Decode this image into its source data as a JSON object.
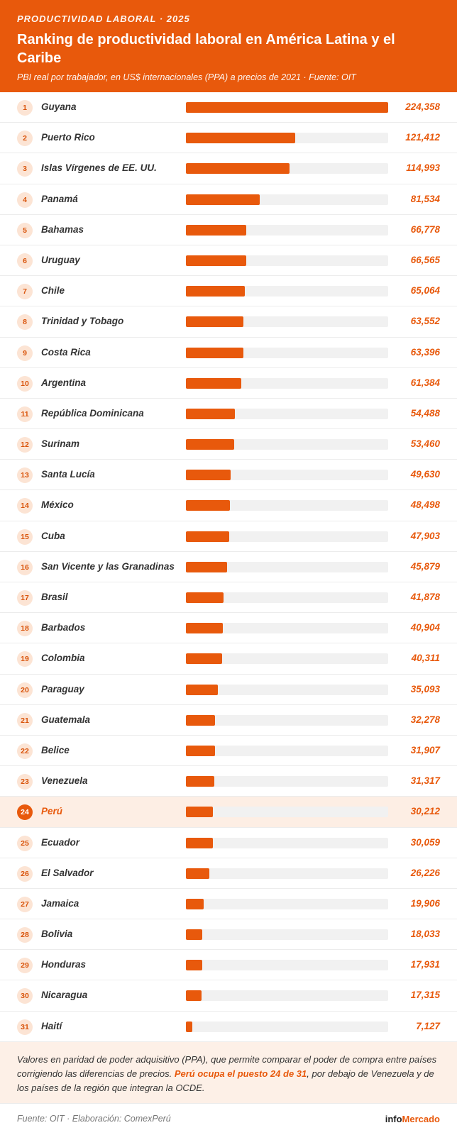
{
  "header": {
    "kicker": "PRODUCTIVIDAD LABORAL · 2025",
    "title": "Ranking de productividad laboral en América Latina y el Caribe",
    "subtitle": "PBI real por trabajador, en US$ internacionales (PPA) a precios de 2021 · Fuente: OIT"
  },
  "chart_data": {
    "type": "bar",
    "orientation": "horizontal",
    "highlight_rank": 24,
    "colors": {
      "accent": "#e8590c",
      "highlight_bg": "#fdeee4",
      "track": "#f1f1f1"
    },
    "xlim": [
      0,
      224358
    ],
    "rows": [
      {
        "rank": "1",
        "country": "Guyana",
        "value": 224358,
        "label": "224,358"
      },
      {
        "rank": "2",
        "country": "Puerto Rico",
        "value": 121412,
        "label": "121,412"
      },
      {
        "rank": "3",
        "country": "Islas Vírgenes de EE. UU.",
        "value": 114993,
        "label": "114,993"
      },
      {
        "rank": "4",
        "country": "Panamá",
        "value": 81534,
        "label": "81,534"
      },
      {
        "rank": "5",
        "country": "Bahamas",
        "value": 66778,
        "label": "66,778"
      },
      {
        "rank": "6",
        "country": "Uruguay",
        "value": 66565,
        "label": "66,565"
      },
      {
        "rank": "7",
        "country": "Chile",
        "value": 65064,
        "label": "65,064"
      },
      {
        "rank": "8",
        "country": "Trinidad y Tobago",
        "value": 63552,
        "label": "63,552"
      },
      {
        "rank": "9",
        "country": "Costa Rica",
        "value": 63396,
        "label": "63,396"
      },
      {
        "rank": "10",
        "country": "Argentina",
        "value": 61384,
        "label": "61,384"
      },
      {
        "rank": "11",
        "country": "República Dominicana",
        "value": 54488,
        "label": "54,488"
      },
      {
        "rank": "12",
        "country": "Surinam",
        "value": 53460,
        "label": "53,460"
      },
      {
        "rank": "13",
        "country": "Santa Lucía",
        "value": 49630,
        "label": "49,630"
      },
      {
        "rank": "14",
        "country": "México",
        "value": 48498,
        "label": "48,498"
      },
      {
        "rank": "15",
        "country": "Cuba",
        "value": 47903,
        "label": "47,903"
      },
      {
        "rank": "16",
        "country": "San Vicente y las Granadinas",
        "value": 45879,
        "label": "45,879"
      },
      {
        "rank": "17",
        "country": "Brasil",
        "value": 41878,
        "label": "41,878"
      },
      {
        "rank": "18",
        "country": "Barbados",
        "value": 40904,
        "label": "40,904"
      },
      {
        "rank": "19",
        "country": "Colombia",
        "value": 40311,
        "label": "40,311"
      },
      {
        "rank": "20",
        "country": "Paraguay",
        "value": 35093,
        "label": "35,093"
      },
      {
        "rank": "21",
        "country": "Guatemala",
        "value": 32278,
        "label": "32,278"
      },
      {
        "rank": "22",
        "country": "Belice",
        "value": 31907,
        "label": "31,907"
      },
      {
        "rank": "23",
        "country": "Venezuela",
        "value": 31317,
        "label": "31,317"
      },
      {
        "rank": "24",
        "country": "Perú",
        "value": 30212,
        "label": "30,212"
      },
      {
        "rank": "25",
        "country": "Ecuador",
        "value": 30059,
        "label": "30,059"
      },
      {
        "rank": "26",
        "country": "El Salvador",
        "value": 26226,
        "label": "26,226"
      },
      {
        "rank": "27",
        "country": "Jamaica",
        "value": 19906,
        "label": "19,906"
      },
      {
        "rank": "28",
        "country": "Bolivia",
        "value": 18033,
        "label": "18,033"
      },
      {
        "rank": "29",
        "country": "Honduras",
        "value": 17931,
        "label": "17,931"
      },
      {
        "rank": "30",
        "country": "Nicaragua",
        "value": 17315,
        "label": "17,315"
      },
      {
        "rank": "31",
        "country": "Haití",
        "value": 7127,
        "label": "7,127"
      }
    ]
  },
  "note": {
    "text_before": "Valores en paridad de poder adquisitivo (PPA), que permite comparar el poder de compra entre países corrigiendo las diferencias de precios. ",
    "text_strong": "Perú ocupa el puesto 24 de 31",
    "text_after": ", por debajo de Venezuela y de los países de la región que integran la OCDE."
  },
  "footer": {
    "source": "Fuente: OIT · Elaboración: ComexPerú",
    "brand_part1": "info",
    "brand_part2": "Mercado"
  }
}
